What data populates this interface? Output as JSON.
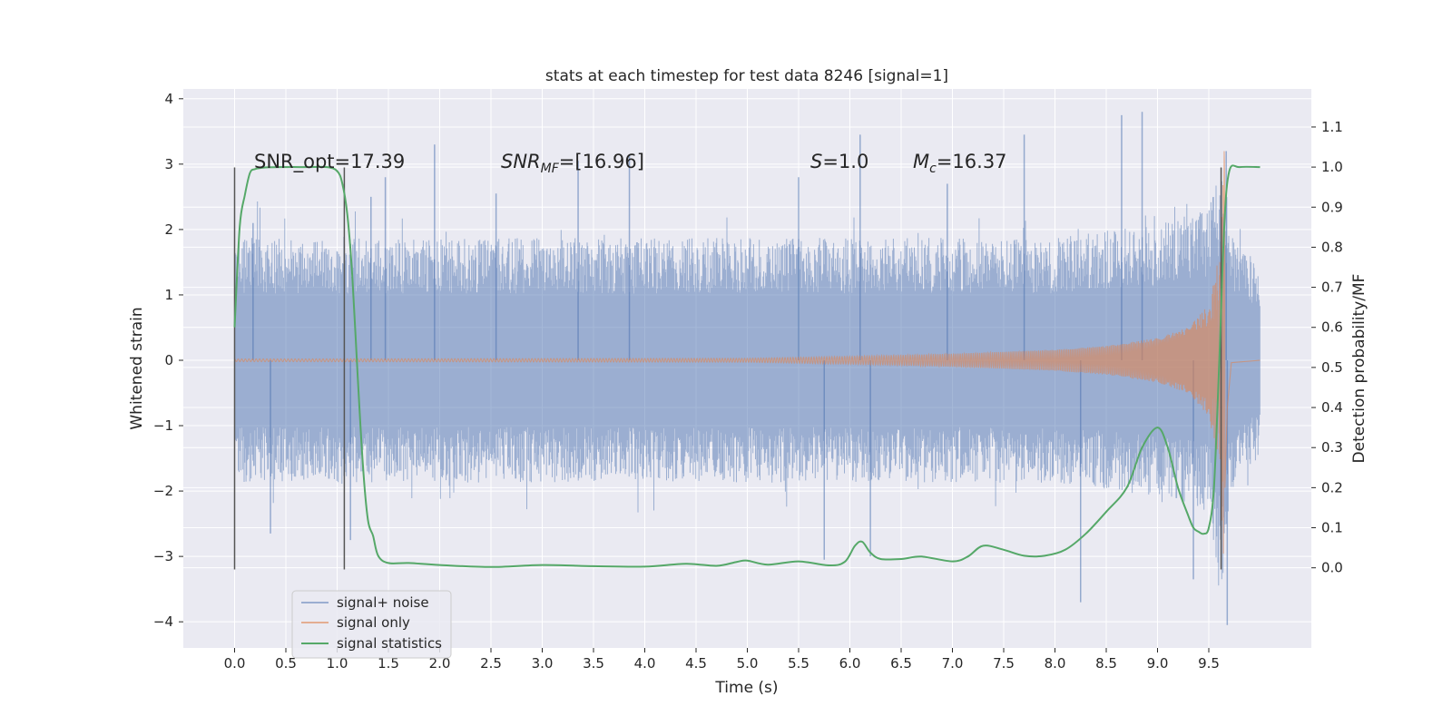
{
  "chart_data": {
    "type": "line",
    "title": "stats at each timestep for test data 8246 [signal=1]",
    "xlabel": "Time (s)",
    "ylabel": "Whitened strain",
    "ylabel_right": "Detection probability/MF",
    "xlim": [
      -0.5,
      10.5
    ],
    "ylim": [
      -4.4,
      4.15
    ],
    "ylim_right": [
      -0.2,
      1.195
    ],
    "x_ticks": [
      "0.0",
      "0.5",
      "1.0",
      "1.5",
      "2.0",
      "2.5",
      "3.0",
      "3.5",
      "4.0",
      "4.5",
      "5.0",
      "5.5",
      "6.0",
      "6.5",
      "7.0",
      "7.5",
      "8.0",
      "8.5",
      "9.0",
      "9.5"
    ],
    "y_ticks": [
      "4",
      "3",
      "2",
      "1",
      "0",
      "−1",
      "−2",
      "−3",
      "−4"
    ],
    "y_ticks_right": [
      "1.1",
      "1.0",
      "0.9",
      "0.8",
      "0.7",
      "0.6",
      "0.5",
      "0.4",
      "0.3",
      "0.2",
      "0.1",
      "0.0"
    ],
    "grid": true,
    "legend_position": "lower-left",
    "colors": {
      "background": "#eaeaf2",
      "grid": "#ffffff",
      "noise": "#4c72b0",
      "signal": "#dd8452",
      "stats": "#55a868",
      "vline": "#555555"
    },
    "series": [
      {
        "name": "signal+ noise",
        "description_kind": "noise band",
        "x_range": [
          0.0,
          10.0
        ],
        "envelope": {
          "x": [
            0.0,
            1.0,
            2.0,
            3.0,
            4.0,
            5.0,
            6.0,
            7.0,
            8.0,
            8.5,
            9.0,
            9.5,
            9.65,
            9.7,
            10.0
          ],
          "upper": [
            1.7,
            1.7,
            1.7,
            1.7,
            1.7,
            1.7,
            1.7,
            1.7,
            1.7,
            1.8,
            1.9,
            2.1,
            2.9,
            1.8,
            1.3
          ],
          "lower": [
            -1.7,
            -1.7,
            -1.7,
            -1.7,
            -1.7,
            -1.7,
            -1.7,
            -1.7,
            -1.7,
            -1.8,
            -1.9,
            -2.1,
            -3.5,
            -1.8,
            -1.3
          ]
        },
        "peaks": [
          {
            "x": 0.18,
            "y": 2.1
          },
          {
            "x": 1.33,
            "y": 2.5
          },
          {
            "x": 1.47,
            "y": 2.8
          },
          {
            "x": 1.95,
            "y": 3.3
          },
          {
            "x": 2.55,
            "y": 2.55
          },
          {
            "x": 3.35,
            "y": 3.05
          },
          {
            "x": 3.85,
            "y": 3.15
          },
          {
            "x": 5.5,
            "y": 2.8
          },
          {
            "x": 6.1,
            "y": 3.45
          },
          {
            "x": 6.95,
            "y": 2.7
          },
          {
            "x": 7.7,
            "y": 3.45
          },
          {
            "x": 8.65,
            "y": 3.75
          },
          {
            "x": 8.85,
            "y": 3.8
          },
          {
            "x": 9.67,
            "y": 3.2
          },
          {
            "x": 0.35,
            "y": -2.65
          },
          {
            "x": 1.13,
            "y": -2.75
          },
          {
            "x": 5.75,
            "y": -3.05
          },
          {
            "x": 6.2,
            "y": -3.0
          },
          {
            "x": 8.25,
            "y": -3.7
          },
          {
            "x": 9.35,
            "y": -3.35
          },
          {
            "x": 9.68,
            "y": -4.05
          }
        ]
      },
      {
        "name": "signal only",
        "description_kind": "chirp",
        "x_range": [
          0.0,
          10.0
        ],
        "amplitude": {
          "x": [
            0.0,
            5.0,
            6.0,
            7.0,
            8.0,
            8.5,
            9.0,
            9.3,
            9.5,
            9.6,
            9.65,
            9.68,
            9.72,
            10.0
          ],
          "y": [
            0.02,
            0.03,
            0.06,
            0.1,
            0.16,
            0.22,
            0.34,
            0.5,
            0.85,
            1.6,
            3.2,
            1.0,
            0.05,
            0.0
          ]
        }
      },
      {
        "name": "signal statistics",
        "axis": "right",
        "x": [
          0.0,
          0.05,
          0.1,
          0.15,
          0.2,
          0.3,
          0.5,
          0.7,
          0.9,
          1.0,
          1.05,
          1.1,
          1.15,
          1.2,
          1.25,
          1.3,
          1.35,
          1.4,
          1.5,
          1.7,
          2.0,
          2.5,
          3.0,
          3.5,
          4.0,
          4.4,
          4.7,
          4.9,
          5.0,
          5.2,
          5.5,
          5.8,
          5.95,
          6.05,
          6.12,
          6.2,
          6.3,
          6.5,
          6.7,
          7.0,
          7.15,
          7.3,
          7.5,
          7.7,
          7.9,
          8.1,
          8.3,
          8.5,
          8.7,
          8.85,
          9.0,
          9.1,
          9.2,
          9.3,
          9.35,
          9.4,
          9.45,
          9.5,
          9.55,
          9.6,
          9.65,
          9.7,
          9.8,
          10.0
        ],
        "y": [
          0.6,
          0.85,
          0.93,
          0.985,
          0.995,
          0.999,
          1.0,
          1.0,
          1.0,
          0.99,
          0.96,
          0.88,
          0.72,
          0.48,
          0.26,
          0.12,
          0.08,
          0.03,
          0.012,
          0.012,
          0.007,
          0.002,
          0.007,
          0.004,
          0.003,
          0.01,
          0.005,
          0.015,
          0.018,
          0.008,
          0.016,
          0.006,
          0.015,
          0.055,
          0.065,
          0.038,
          0.022,
          0.022,
          0.028,
          0.016,
          0.028,
          0.055,
          0.045,
          0.03,
          0.03,
          0.045,
          0.085,
          0.14,
          0.2,
          0.3,
          0.35,
          0.3,
          0.2,
          0.13,
          0.1,
          0.09,
          0.085,
          0.1,
          0.2,
          0.5,
          0.85,
          0.99,
          1.0,
          1.0
        ]
      }
    ],
    "vlines": [
      {
        "x": 0.0,
        "y": [
          -3.2,
          2.95
        ]
      },
      {
        "x": 1.07,
        "y": [
          -3.2,
          2.95
        ]
      },
      {
        "x": 9.62,
        "y": [
          -3.2,
          2.95
        ]
      }
    ],
    "annotations": [
      {
        "text": "SNR_opt=17.39",
        "x": 0.2,
        "y": 3.0
      },
      {
        "text": "SNR_MF=[16.96]",
        "x": 2.6,
        "y": 3.0,
        "parts": {
          "var": "SNR",
          "sub": "MF",
          "value": "=[16.96]"
        }
      },
      {
        "text": "S=1.0",
        "x": 5.62,
        "y": 3.0,
        "parts": {
          "var": "S",
          "sub": "",
          "value": "=1.0"
        }
      },
      {
        "text": "M_c=16.37",
        "x": 6.62,
        "y": 3.0,
        "parts": {
          "var": "M",
          "sub": "c",
          "value": "=16.37"
        }
      }
    ],
    "legend": [
      "signal+ noise",
      "signal only",
      "signal statistics"
    ]
  }
}
